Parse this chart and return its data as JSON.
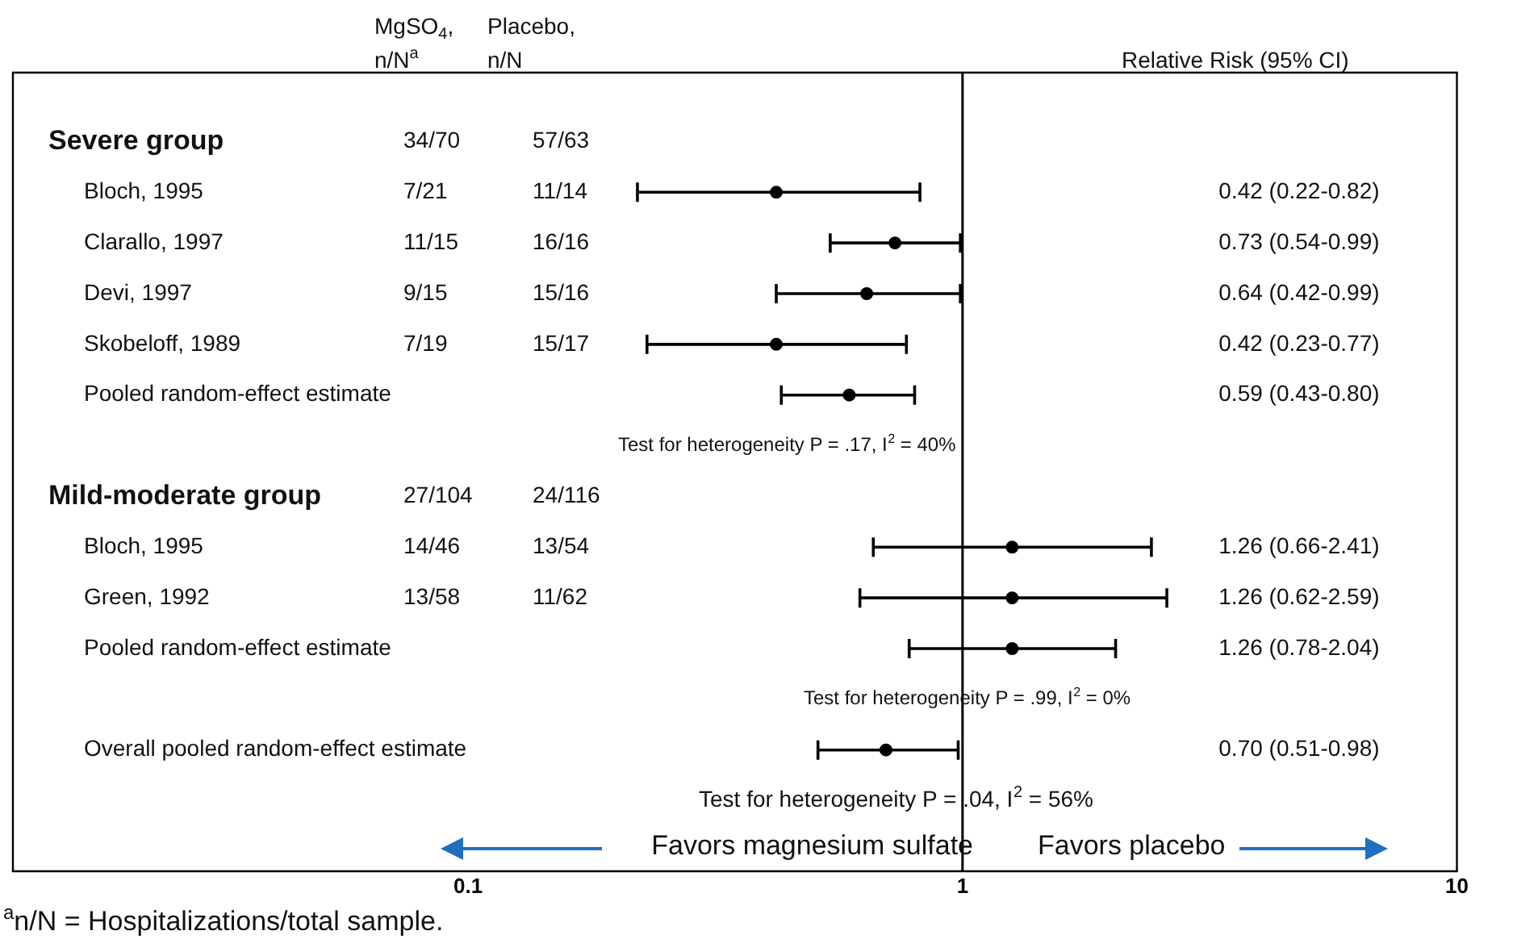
{
  "chart_data": {
    "type": "scatter",
    "orientation": "horizontal",
    "log": "x",
    "grid": false,
    "legend": false,
    "marker": "circle",
    "color": "#000000",
    "categories": [
      "Severe group",
      "Bloch, 1995",
      "Clarallo, 1997",
      "Devi, 1997",
      "Skobeloff, 1989",
      "Pooled random-effect estimate",
      null,
      "Mild-moderate group",
      "Bloch, 1995",
      "Green, 1992",
      "Pooled random-effect estimate",
      null,
      "Overall pooled random-effect estimate",
      null
    ],
    "values": [
      null,
      0.42,
      0.73,
      0.64,
      0.42,
      0.59,
      null,
      null,
      1.26,
      1.26,
      1.26,
      null,
      0.7,
      null
    ],
    "errors": [
      null,
      [
        0.22,
        0.82
      ],
      [
        0.54,
        0.99
      ],
      [
        0.42,
        0.99
      ],
      [
        0.23,
        0.77
      ],
      [
        0.43,
        0.8
      ],
      null,
      null,
      [
        0.66,
        2.41
      ],
      [
        0.62,
        2.59
      ],
      [
        0.78,
        2.04
      ],
      null,
      [
        0.51,
        0.98
      ],
      null
    ],
    "xlim": [
      0.012,
      10
    ],
    "xticks": [
      0.1,
      1,
      10
    ],
    "ref_lines": [
      {
        "axis": "x",
        "value": 1
      }
    ],
    "annotations": [
      "MgSO$_{4}$,\nn/N$^{a}$",
      "Placebo,\nn/N",
      "Relative Risk (95% CI)",
      "34/70",
      "57/63",
      "7/21",
      "11/14",
      "11/15",
      "16/16",
      "9/15",
      "15/16",
      "7/19",
      "15/17",
      "27/104",
      "24/116",
      "14/46",
      "13/54",
      "13/58",
      "11/62",
      "0.42 (0.22-0.82)",
      "0.73 (0.54-0.99)",
      "0.64 (0.42-0.99)",
      "0.42 (0.23-0.77)",
      "0.59 (0.43-0.80)",
      "1.26 (0.66-2.41)",
      "1.26 (0.62-2.59)",
      "1.26 (0.78-2.04)",
      "0.70 (0.51-0.98)",
      "Test for heterogeneity P = .17, I$^{2}$ = 40%",
      "Test for heterogeneity P = .99, I$^{2}$ = 0%",
      "Test for heterogeneity P = .04, I$^{2}$ = 56%",
      "Favors magnesium sulfate",
      "Favors placebo",
      "$^{a}$n/N = Hospitalizations/total sample."
    ]
  }
}
